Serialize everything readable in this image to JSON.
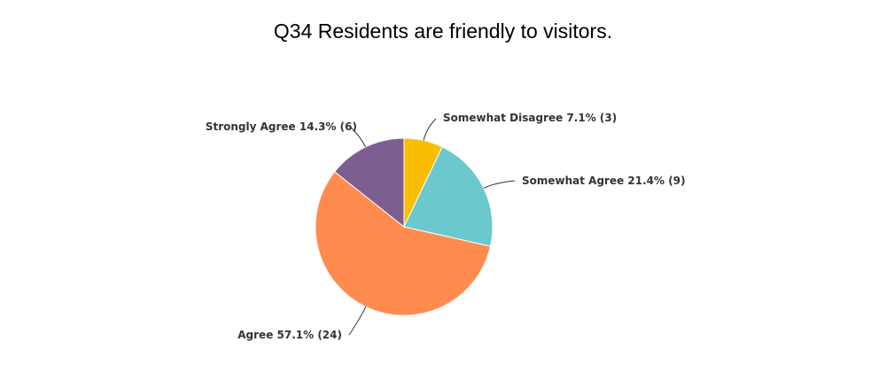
{
  "chart_data": {
    "type": "pie",
    "title": "Q34 Residents are friendly to visitors.",
    "slices": [
      {
        "label": "Somewhat Disagree",
        "percent": 7.1,
        "count": 3,
        "percent_text": "7.1%",
        "count_text": "(3)",
        "color": "#F9BE00"
      },
      {
        "label": "Somewhat Agree",
        "percent": 21.4,
        "count": 9,
        "percent_text": "21.4%",
        "count_text": "(9)",
        "color": "#6BC8CD"
      },
      {
        "label": "Agree",
        "percent": 57.1,
        "count": 24,
        "percent_text": "57.1%",
        "count_text": "(24)",
        "color": "#FF8B4F"
      },
      {
        "label": "Strongly Agree",
        "percent": 14.3,
        "count": 6,
        "percent_text": "14.3%",
        "count_text": "(6)",
        "color": "#7D5E90"
      }
    ],
    "start_angle": "12 o'clock",
    "direction": "clockwise",
    "legend": "none"
  }
}
